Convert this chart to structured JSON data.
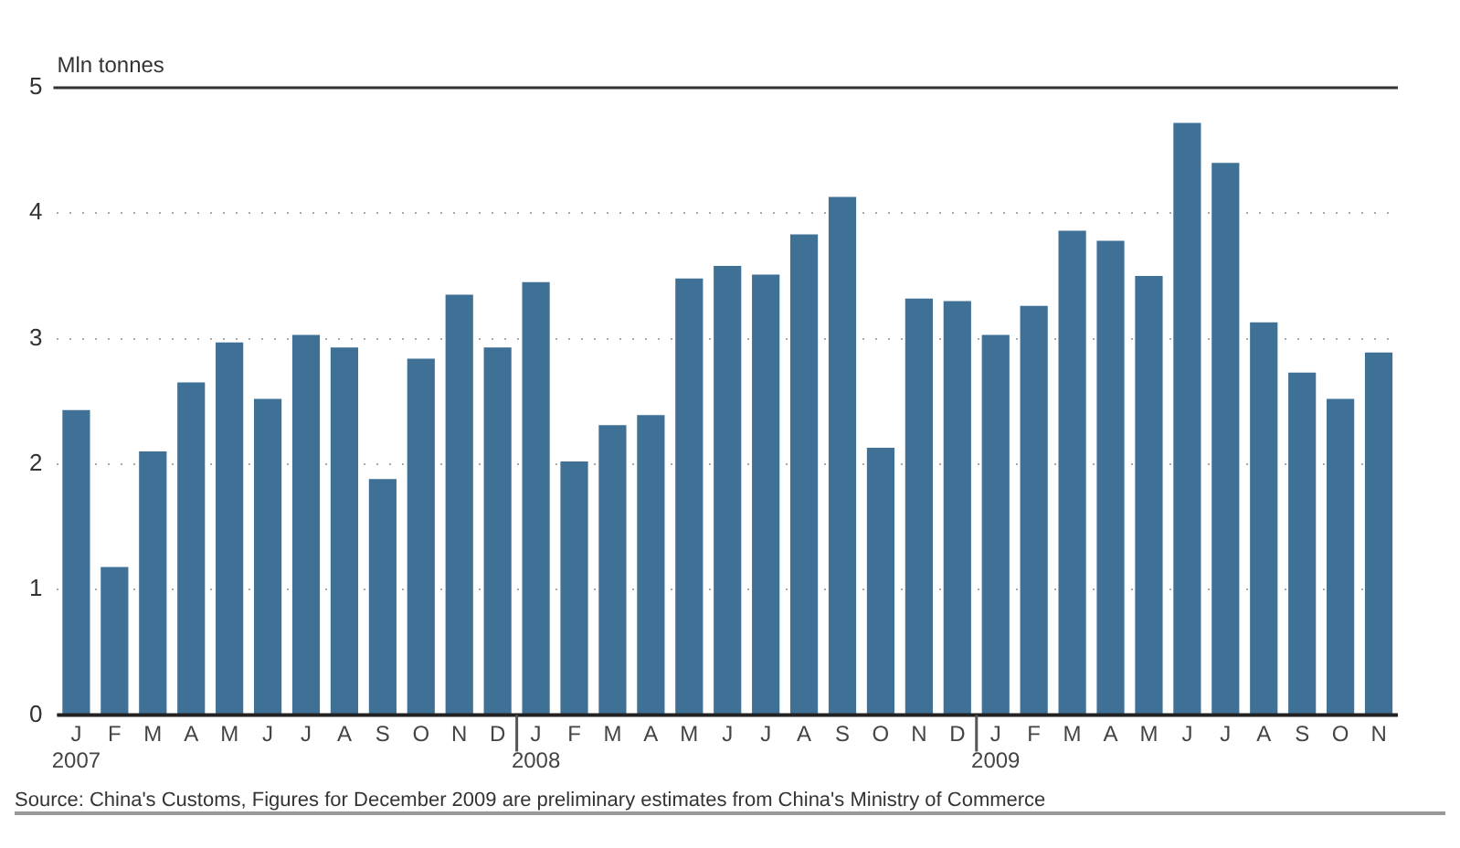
{
  "chart_data": {
    "type": "bar",
    "ylabel": "Mln tonnes",
    "categories": [
      "J\n2007",
      "F",
      "M",
      "A",
      "M",
      "J",
      "J",
      "A",
      "S",
      "O",
      "N",
      "D",
      "J\n2008",
      "F",
      "M",
      "A",
      "M",
      "J",
      "J",
      "A",
      "S",
      "O",
      "N",
      "D",
      "J\n2009",
      "F",
      "M",
      "A",
      "M",
      "J",
      "J",
      "A",
      "S",
      "O",
      "N"
    ],
    "values": [
      2.43,
      1.18,
      2.1,
      2.65,
      2.97,
      2.52,
      3.03,
      2.93,
      1.88,
      2.84,
      3.35,
      2.93,
      3.45,
      2.02,
      2.31,
      2.39,
      3.48,
      3.58,
      3.51,
      3.83,
      4.13,
      2.13,
      3.32,
      3.3,
      3.03,
      3.26,
      3.86,
      3.78,
      3.5,
      4.72,
      4.4,
      3.13,
      2.73,
      2.52,
      2.89
    ],
    "color": "#3f7096",
    "ylim": [
      0,
      5
    ],
    "yticks": [
      0,
      1,
      2,
      3,
      4,
      5
    ],
    "grid": "y",
    "legend": false,
    "annotations": [
      "Source: China's Customs, Figures for December 2009 are preliminary estimates from China's Ministry of Commerce"
    ]
  }
}
